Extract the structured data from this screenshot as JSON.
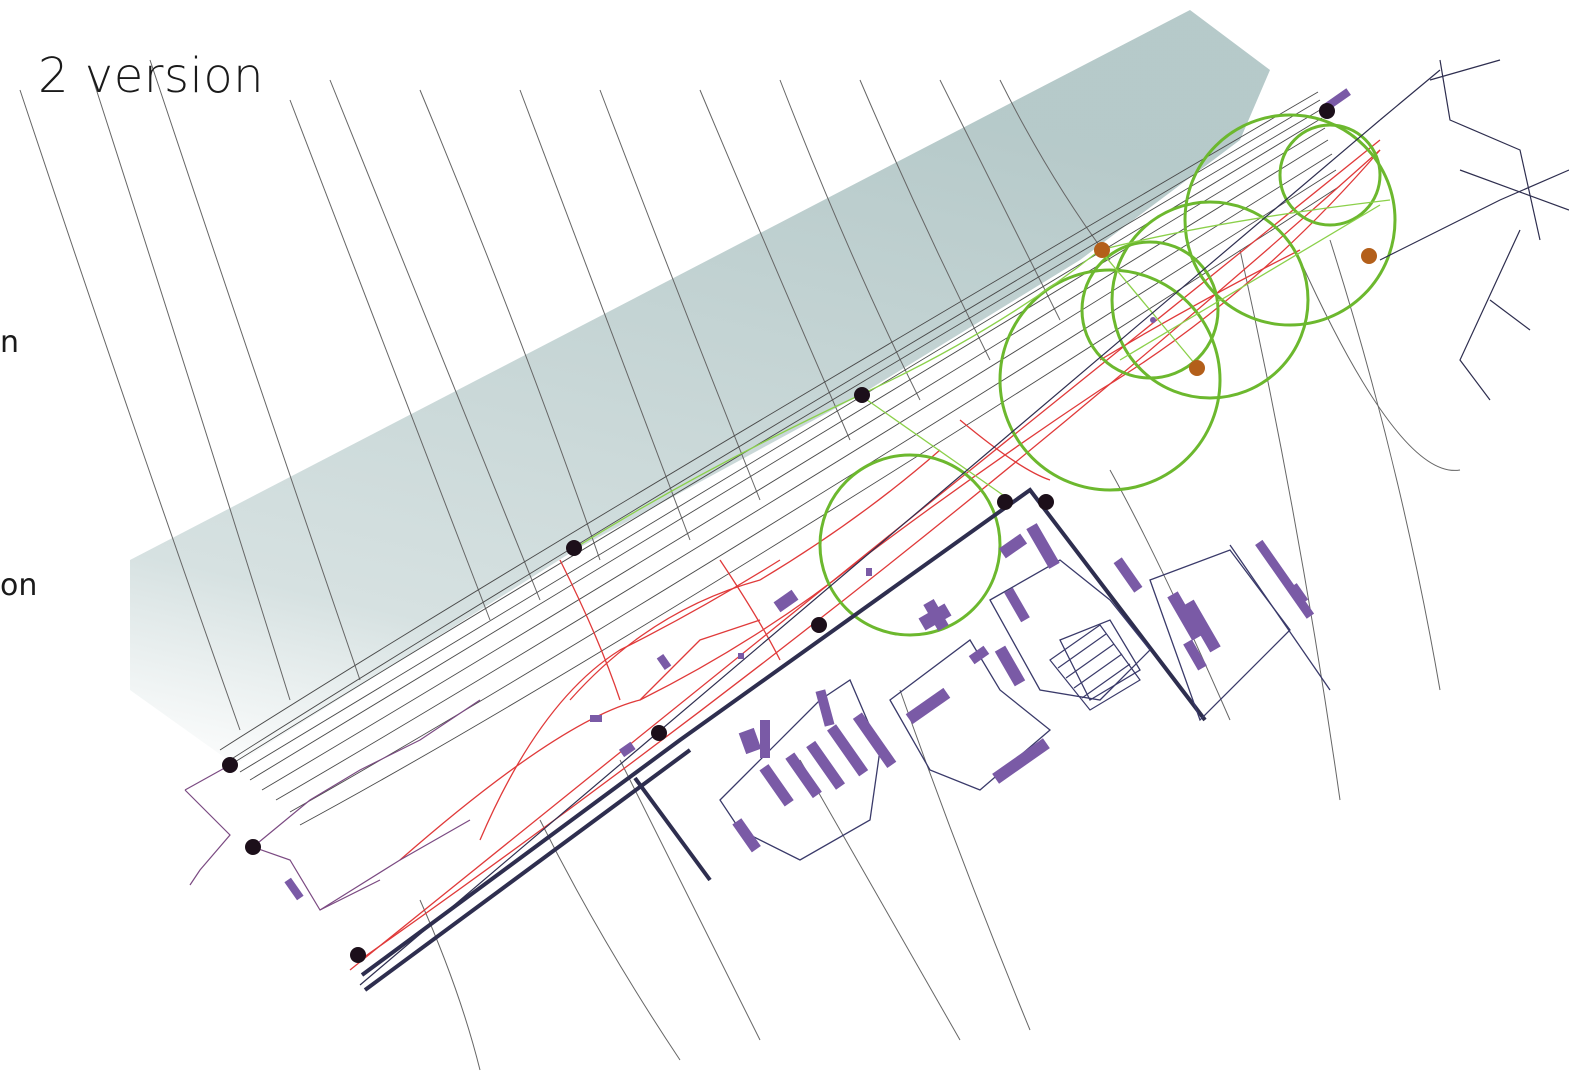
{
  "page": {
    "title": "2 version",
    "cut_off_text": [
      "n",
      "on"
    ]
  },
  "legend_colors": {
    "sea": "#c7d6d6",
    "contour": "#555555",
    "paths": "#e03a3a",
    "trail_green": "#6cb82e",
    "roads": "#2e2e4f",
    "buildings": "#7a5aa6",
    "node_dark": "#1c0f1a",
    "node_orange": "#b35f1a",
    "boundary_purple": "#7b4a82"
  },
  "icons": [
    "node-dot-icon",
    "junction-orange-icon"
  ]
}
